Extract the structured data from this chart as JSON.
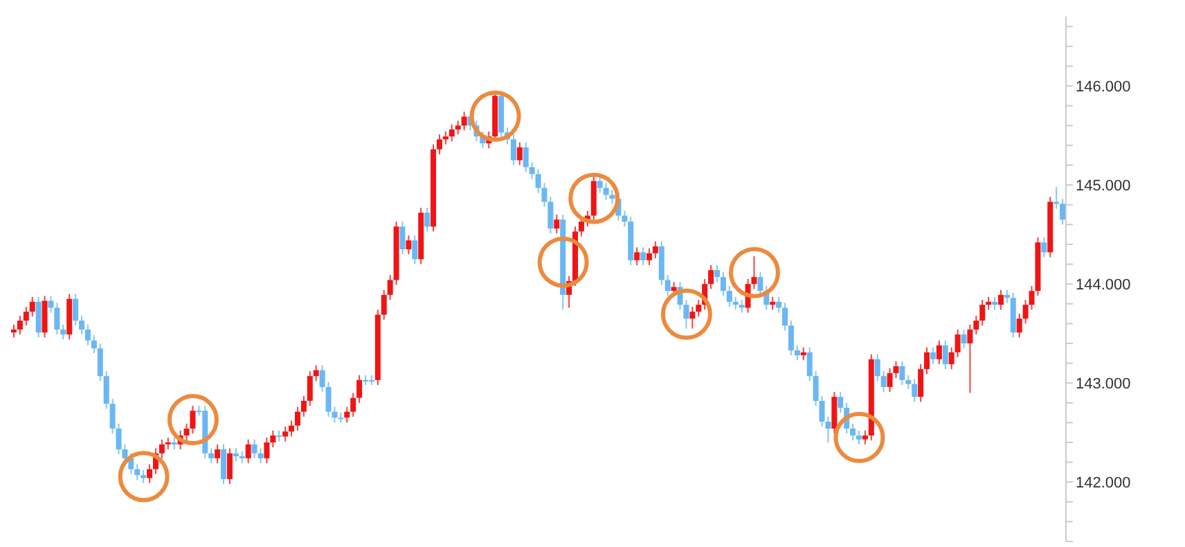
{
  "chart_data": {
    "type": "candlestick",
    "categories": [
      null,
      null,
      null,
      null,
      null,
      null,
      null,
      null,
      null,
      null,
      null,
      null,
      null,
      null,
      null,
      null,
      null,
      null,
      null,
      null,
      null,
      null,
      null,
      null,
      null,
      null,
      null,
      null,
      null,
      null,
      null,
      null,
      null,
      null,
      null,
      null,
      null,
      null,
      null,
      null,
      null,
      null,
      null,
      null,
      null,
      null,
      null,
      null,
      null,
      null,
      null,
      null,
      null,
      null,
      null,
      null,
      null,
      null,
      null,
      null,
      null,
      null,
      null,
      null,
      null,
      null,
      null,
      null,
      null,
      null,
      null,
      null,
      null,
      null,
      null,
      null,
      null,
      null,
      null,
      null,
      null,
      null,
      null,
      null,
      null,
      null,
      null,
      null,
      null,
      null,
      null,
      null,
      null,
      null,
      null,
      null,
      null,
      null,
      null,
      null,
      null,
      null,
      null,
      null,
      null,
      null,
      null,
      null,
      null,
      null,
      null,
      null,
      null,
      null,
      null,
      null,
      null,
      null,
      null,
      null,
      null,
      null,
      null,
      null,
      null,
      null,
      null,
      null,
      null,
      null,
      null,
      null,
      null,
      null,
      null,
      null,
      null,
      null,
      null,
      null,
      null,
      null,
      null,
      null,
      null,
      null,
      null,
      null,
      null,
      null,
      null,
      null,
      null,
      null,
      null,
      null,
      null,
      null,
      null,
      null,
      null,
      null,
      null,
      null,
      null,
      null,
      null,
      null,
      null,
      null,
      null
    ],
    "ohlc": [
      [
        143.51,
        143.59,
        143.46,
        143.54
      ],
      [
        143.54,
        143.68,
        143.49,
        143.63
      ],
      [
        143.63,
        143.77,
        143.58,
        143.72
      ],
      [
        143.72,
        143.87,
        143.67,
        143.82
      ],
      [
        143.82,
        143.87,
        143.46,
        143.51
      ],
      [
        143.51,
        143.88,
        143.46,
        143.83
      ],
      [
        143.83,
        143.88,
        143.71,
        143.76
      ],
      [
        143.76,
        143.81,
        143.49,
        143.54
      ],
      [
        143.54,
        143.59,
        143.44,
        143.49
      ],
      [
        143.49,
        143.9,
        143.44,
        143.85
      ],
      [
        143.85,
        143.9,
        143.58,
        143.63
      ],
      [
        143.63,
        143.68,
        143.49,
        143.54
      ],
      [
        143.54,
        143.59,
        143.38,
        143.43
      ],
      [
        143.43,
        143.48,
        143.3,
        143.35
      ],
      [
        143.35,
        143.4,
        143.02,
        143.07
      ],
      [
        143.07,
        143.12,
        142.74,
        142.79
      ],
      [
        142.79,
        142.84,
        142.49,
        142.54
      ],
      [
        142.54,
        142.59,
        142.28,
        142.33
      ],
      [
        142.33,
        142.38,
        142.19,
        142.24
      ],
      [
        142.24,
        142.29,
        142.08,
        142.13
      ],
      [
        142.13,
        142.18,
        142.02,
        142.07
      ],
      [
        142.07,
        142.12,
        141.99,
        142.04
      ],
      [
        142.04,
        142.18,
        141.99,
        142.13
      ],
      [
        142.13,
        142.34,
        142.08,
        142.29
      ],
      [
        142.29,
        142.43,
        142.24,
        142.38
      ],
      [
        142.38,
        142.45,
        142.33,
        142.4
      ],
      [
        142.4,
        142.45,
        142.33,
        142.38
      ],
      [
        142.38,
        142.52,
        142.33,
        142.47
      ],
      [
        142.47,
        142.59,
        142.42,
        142.54
      ],
      [
        142.54,
        142.77,
        142.49,
        142.72
      ],
      [
        142.72,
        142.77,
        142.67,
        142.72
      ],
      [
        142.72,
        142.77,
        142.24,
        142.29
      ],
      [
        142.29,
        142.34,
        142.19,
        142.24
      ],
      [
        142.24,
        142.38,
        142.19,
        142.33
      ],
      [
        142.33,
        142.38,
        141.98,
        142.03
      ],
      [
        142.03,
        142.34,
        141.98,
        142.29
      ],
      [
        142.29,
        142.34,
        142.21,
        142.26
      ],
      [
        142.26,
        142.31,
        142.19,
        142.24
      ],
      [
        142.24,
        142.43,
        142.19,
        142.38
      ],
      [
        142.38,
        142.43,
        142.24,
        142.29
      ],
      [
        142.29,
        142.34,
        142.19,
        142.24
      ],
      [
        142.24,
        142.45,
        142.19,
        142.4
      ],
      [
        142.4,
        142.52,
        142.35,
        142.47
      ],
      [
        142.47,
        142.52,
        142.41,
        142.46
      ],
      [
        142.46,
        142.56,
        142.41,
        142.51
      ],
      [
        142.51,
        142.62,
        142.46,
        142.57
      ],
      [
        142.57,
        142.76,
        142.52,
        142.71
      ],
      [
        142.71,
        142.87,
        142.66,
        142.82
      ],
      [
        142.82,
        143.12,
        142.77,
        143.07
      ],
      [
        143.07,
        143.18,
        143.02,
        143.13
      ],
      [
        143.13,
        143.18,
        142.91,
        142.96
      ],
      [
        142.96,
        143.01,
        142.66,
        142.71
      ],
      [
        142.71,
        142.76,
        142.6,
        142.65
      ],
      [
        142.65,
        142.7,
        142.6,
        142.65
      ],
      [
        142.65,
        142.76,
        142.6,
        142.71
      ],
      [
        142.71,
        142.9,
        142.66,
        142.85
      ],
      [
        142.85,
        143.08,
        142.8,
        143.03
      ],
      [
        143.03,
        143.08,
        142.98,
        143.03
      ],
      [
        143.03,
        143.08,
        142.98,
        143.03
      ],
      [
        143.03,
        143.74,
        142.98,
        143.69
      ],
      [
        143.69,
        143.94,
        143.64,
        143.89
      ],
      [
        143.89,
        144.09,
        143.84,
        144.04
      ],
      [
        144.04,
        144.63,
        143.99,
        144.58
      ],
      [
        144.58,
        144.63,
        144.3,
        144.35
      ],
      [
        144.35,
        144.49,
        144.3,
        144.44
      ],
      [
        144.44,
        144.49,
        144.2,
        144.25
      ],
      [
        144.25,
        144.77,
        144.2,
        144.72
      ],
      [
        144.72,
        144.77,
        144.53,
        144.58
      ],
      [
        144.58,
        145.41,
        144.53,
        145.36
      ],
      [
        145.36,
        145.51,
        145.31,
        145.46
      ],
      [
        145.46,
        145.54,
        145.41,
        145.49
      ],
      [
        145.49,
        145.61,
        145.44,
        145.56
      ],
      [
        145.56,
        145.65,
        145.51,
        145.6
      ],
      [
        145.6,
        145.74,
        145.55,
        145.69
      ],
      [
        145.69,
        145.74,
        145.55,
        145.6
      ],
      [
        145.6,
        145.65,
        145.44,
        145.49
      ],
      [
        145.49,
        145.54,
        145.37,
        145.42
      ],
      [
        145.42,
        145.54,
        145.37,
        145.49
      ],
      [
        145.49,
        145.95,
        145.44,
        145.9
      ],
      [
        145.9,
        145.95,
        145.48,
        145.53
      ],
      [
        145.53,
        145.58,
        145.41,
        145.46
      ],
      [
        145.46,
        145.51,
        145.2,
        145.25
      ],
      [
        145.25,
        145.43,
        145.2,
        145.38
      ],
      [
        145.38,
        145.43,
        145.13,
        145.18
      ],
      [
        145.18,
        145.23,
        145.06,
        145.11
      ],
      [
        145.11,
        145.16,
        144.92,
        144.97
      ],
      [
        144.97,
        145.02,
        144.78,
        144.83
      ],
      [
        144.83,
        144.88,
        144.51,
        144.56
      ],
      [
        144.56,
        144.7,
        144.51,
        144.65
      ],
      [
        144.65,
        144.7,
        143.74,
        143.89
      ],
      [
        143.89,
        144.08,
        143.76,
        144.03
      ],
      [
        144.03,
        144.58,
        143.98,
        144.53
      ],
      [
        144.53,
        144.68,
        144.48,
        144.63
      ],
      [
        144.63,
        144.74,
        144.58,
        144.69
      ],
      [
        144.69,
        145.09,
        144.64,
        145.04
      ],
      [
        145.04,
        145.09,
        144.92,
        144.97
      ],
      [
        144.97,
        145.02,
        144.85,
        144.9
      ],
      [
        144.9,
        144.95,
        144.81,
        144.86
      ],
      [
        144.86,
        144.91,
        144.64,
        144.69
      ],
      [
        144.69,
        144.74,
        144.58,
        144.63
      ],
      [
        144.63,
        144.68,
        144.19,
        144.24
      ],
      [
        144.24,
        144.37,
        144.19,
        144.32
      ],
      [
        144.32,
        144.37,
        144.19,
        144.24
      ],
      [
        144.24,
        144.36,
        144.19,
        144.31
      ],
      [
        144.31,
        144.43,
        144.26,
        144.38
      ],
      [
        144.38,
        144.43,
        143.99,
        144.04
      ],
      [
        144.04,
        144.09,
        143.88,
        143.93
      ],
      [
        143.93,
        144.02,
        143.88,
        143.97
      ],
      [
        143.97,
        144.02,
        143.74,
        143.79
      ],
      [
        143.79,
        143.84,
        143.55,
        143.65
      ],
      [
        143.65,
        143.77,
        143.55,
        143.72
      ],
      [
        143.72,
        143.84,
        143.67,
        143.79
      ],
      [
        143.79,
        144.05,
        143.74,
        144.0
      ],
      [
        144.0,
        144.19,
        143.95,
        144.14
      ],
      [
        144.14,
        144.19,
        144.02,
        144.07
      ],
      [
        144.07,
        144.12,
        143.88,
        143.93
      ],
      [
        143.93,
        143.98,
        143.77,
        143.82
      ],
      [
        143.82,
        143.87,
        143.74,
        143.79
      ],
      [
        143.79,
        143.84,
        143.71,
        143.76
      ],
      [
        143.76,
        144.05,
        143.71,
        144.0
      ],
      [
        144.0,
        144.28,
        143.95,
        144.07
      ],
      [
        144.07,
        144.12,
        143.88,
        143.93
      ],
      [
        143.93,
        143.98,
        143.74,
        143.79
      ],
      [
        143.79,
        143.87,
        143.74,
        143.82
      ],
      [
        143.82,
        143.87,
        143.71,
        143.76
      ],
      [
        143.76,
        143.81,
        143.53,
        143.58
      ],
      [
        143.58,
        143.63,
        143.28,
        143.33
      ],
      [
        143.33,
        143.38,
        143.23,
        143.28
      ],
      [
        143.28,
        143.36,
        143.23,
        143.31
      ],
      [
        143.31,
        143.36,
        143.02,
        143.07
      ],
      [
        143.07,
        143.12,
        142.77,
        142.82
      ],
      [
        142.82,
        142.87,
        142.56,
        142.61
      ],
      [
        142.61,
        142.66,
        142.4,
        142.54
      ],
      [
        142.54,
        142.91,
        142.49,
        142.86
      ],
      [
        142.86,
        142.91,
        142.7,
        142.75
      ],
      [
        142.75,
        142.8,
        142.49,
        142.54
      ],
      [
        142.54,
        142.59,
        142.42,
        142.47
      ],
      [
        142.47,
        142.52,
        142.38,
        142.43
      ],
      [
        142.43,
        142.52,
        142.38,
        142.47
      ],
      [
        142.47,
        143.29,
        142.42,
        143.24
      ],
      [
        143.24,
        143.29,
        143.02,
        143.07
      ],
      [
        143.07,
        143.12,
        142.91,
        142.96
      ],
      [
        142.96,
        143.15,
        142.91,
        143.1
      ],
      [
        143.1,
        143.22,
        143.05,
        143.17
      ],
      [
        143.17,
        143.22,
        142.98,
        143.03
      ],
      [
        143.03,
        143.08,
        142.94,
        142.99
      ],
      [
        142.99,
        143.04,
        142.81,
        142.86
      ],
      [
        142.86,
        143.19,
        142.81,
        143.14
      ],
      [
        143.14,
        143.36,
        143.09,
        143.31
      ],
      [
        143.31,
        143.36,
        143.19,
        143.24
      ],
      [
        143.24,
        143.43,
        143.19,
        143.38
      ],
      [
        143.38,
        143.43,
        143.14,
        143.19
      ],
      [
        143.19,
        143.36,
        143.14,
        143.31
      ],
      [
        143.31,
        143.54,
        143.26,
        143.49
      ],
      [
        143.49,
        143.54,
        143.35,
        143.4
      ],
      [
        143.4,
        143.59,
        142.9,
        143.54
      ],
      [
        143.54,
        143.68,
        143.49,
        143.63
      ],
      [
        143.63,
        143.84,
        143.58,
        143.79
      ],
      [
        143.79,
        143.87,
        143.74,
        143.82
      ],
      [
        143.82,
        143.87,
        143.74,
        143.79
      ],
      [
        143.79,
        143.94,
        143.74,
        143.89
      ],
      [
        143.89,
        143.94,
        143.81,
        143.86
      ],
      [
        143.86,
        143.91,
        143.46,
        143.51
      ],
      [
        143.51,
        143.7,
        143.46,
        143.65
      ],
      [
        143.65,
        143.84,
        143.6,
        143.79
      ],
      [
        143.79,
        143.98,
        143.74,
        143.93
      ],
      [
        143.93,
        144.47,
        143.88,
        144.42
      ],
      [
        144.42,
        144.47,
        144.27,
        144.32
      ],
      [
        144.32,
        144.88,
        144.27,
        144.83
      ],
      [
        144.83,
        144.98,
        144.76,
        144.81
      ],
      [
        144.81,
        144.86,
        144.6,
        144.65
      ]
    ],
    "colors": [
      "#f01515",
      "#f01515",
      "#f01515",
      "#f01515",
      "#6ab7f3",
      "#f01515",
      "#6ab7f3",
      "#6ab7f3",
      "#6ab7f3",
      "#f01515",
      "#6ab7f3",
      "#6ab7f3",
      "#6ab7f3",
      "#6ab7f3",
      "#6ab7f3",
      "#6ab7f3",
      "#6ab7f3",
      "#6ab7f3",
      "#6ab7f3",
      "#6ab7f3",
      "#6ab7f3",
      "#6ab7f3",
      "#f01515",
      "#f01515",
      "#f01515",
      "#f01515",
      "#6ab7f3",
      "#f01515",
      "#f01515",
      "#f01515",
      "#6ab7f3",
      "#6ab7f3",
      "#6ab7f3",
      "#f01515",
      "#6ab7f3",
      "#f01515",
      "#6ab7f3",
      "#6ab7f3",
      "#f01515",
      "#6ab7f3",
      "#6ab7f3",
      "#f01515",
      "#f01515",
      "#6ab7f3",
      "#f01515",
      "#f01515",
      "#f01515",
      "#f01515",
      "#f01515",
      "#f01515",
      "#6ab7f3",
      "#6ab7f3",
      "#6ab7f3",
      "#6ab7f3",
      "#f01515",
      "#f01515",
      "#f01515",
      "#6ab7f3",
      "#6ab7f3",
      "#f01515",
      "#f01515",
      "#f01515",
      "#f01515",
      "#6ab7f3",
      "#f01515",
      "#6ab7f3",
      "#f01515",
      "#6ab7f3",
      "#f01515",
      "#f01515",
      "#f01515",
      "#f01515",
      "#f01515",
      "#f01515",
      "#6ab7f3",
      "#6ab7f3",
      "#6ab7f3",
      "#f01515",
      "#f01515",
      "#6ab7f3",
      "#6ab7f3",
      "#6ab7f3",
      "#f01515",
      "#6ab7f3",
      "#6ab7f3",
      "#6ab7f3",
      "#6ab7f3",
      "#6ab7f3",
      "#f01515",
      "#6ab7f3",
      "#f01515",
      "#f01515",
      "#f01515",
      "#f01515",
      "#f01515",
      "#6ab7f3",
      "#6ab7f3",
      "#6ab7f3",
      "#6ab7f3",
      "#6ab7f3",
      "#6ab7f3",
      "#f01515",
      "#6ab7f3",
      "#f01515",
      "#f01515",
      "#6ab7f3",
      "#6ab7f3",
      "#f01515",
      "#6ab7f3",
      "#6ab7f3",
      "#f01515",
      "#f01515",
      "#f01515",
      "#f01515",
      "#6ab7f3",
      "#6ab7f3",
      "#6ab7f3",
      "#6ab7f3",
      "#6ab7f3",
      "#f01515",
      "#f01515",
      "#6ab7f3",
      "#6ab7f3",
      "#f01515",
      "#6ab7f3",
      "#6ab7f3",
      "#6ab7f3",
      "#6ab7f3",
      "#f01515",
      "#6ab7f3",
      "#6ab7f3",
      "#6ab7f3",
      "#6ab7f3",
      "#f01515",
      "#6ab7f3",
      "#6ab7f3",
      "#6ab7f3",
      "#6ab7f3",
      "#f01515",
      "#f01515",
      "#6ab7f3",
      "#6ab7f3",
      "#f01515",
      "#f01515",
      "#6ab7f3",
      "#6ab7f3",
      "#6ab7f3",
      "#f01515",
      "#f01515",
      "#6ab7f3",
      "#f01515",
      "#6ab7f3",
      "#f01515",
      "#f01515",
      "#6ab7f3",
      "#f01515",
      "#f01515",
      "#f01515",
      "#f01515",
      "#6ab7f3",
      "#f01515",
      "#6ab7f3",
      "#6ab7f3",
      "#f01515",
      "#f01515",
      "#f01515",
      "#f01515",
      "#6ab7f3",
      "#f01515",
      "#6ab7f3",
      "#6ab7f3"
    ],
    "ylim": [
      141.4,
      146.7
    ],
    "yticks": [
      {
        "value": 141.4,
        "label": null
      },
      {
        "value": 141.6,
        "label": null
      },
      {
        "value": 141.8,
        "label": null
      },
      {
        "value": 142,
        "label": "142.000"
      },
      {
        "value": 142.2,
        "label": null
      },
      {
        "value": 142.4,
        "label": null
      },
      {
        "value": 142.6,
        "label": null
      },
      {
        "value": 142.8,
        "label": null
      },
      {
        "value": 143,
        "label": "143.000"
      },
      {
        "value": 143.2,
        "label": null
      },
      {
        "value": 143.4,
        "label": null
      },
      {
        "value": 143.6,
        "label": null
      },
      {
        "value": 143.8,
        "label": null
      },
      {
        "value": 144,
        "label": "144.000"
      },
      {
        "value": 144.2,
        "label": null
      },
      {
        "value": 144.4,
        "label": null
      },
      {
        "value": 144.6,
        "label": null
      },
      {
        "value": 144.8,
        "label": null
      },
      {
        "value": 145,
        "label": "145.000"
      },
      {
        "value": 145.2,
        "label": null
      },
      {
        "value": 145.4,
        "label": null
      },
      {
        "value": 145.6,
        "label": null
      },
      {
        "value": 145.8,
        "label": null
      },
      {
        "value": 146,
        "label": "146.000"
      },
      {
        "value": 146.2,
        "label": null
      },
      {
        "value": 146.4,
        "label": null
      },
      {
        "value": 146.6,
        "label": null
      }
    ],
    "tick_labels": "y"
  }
}
